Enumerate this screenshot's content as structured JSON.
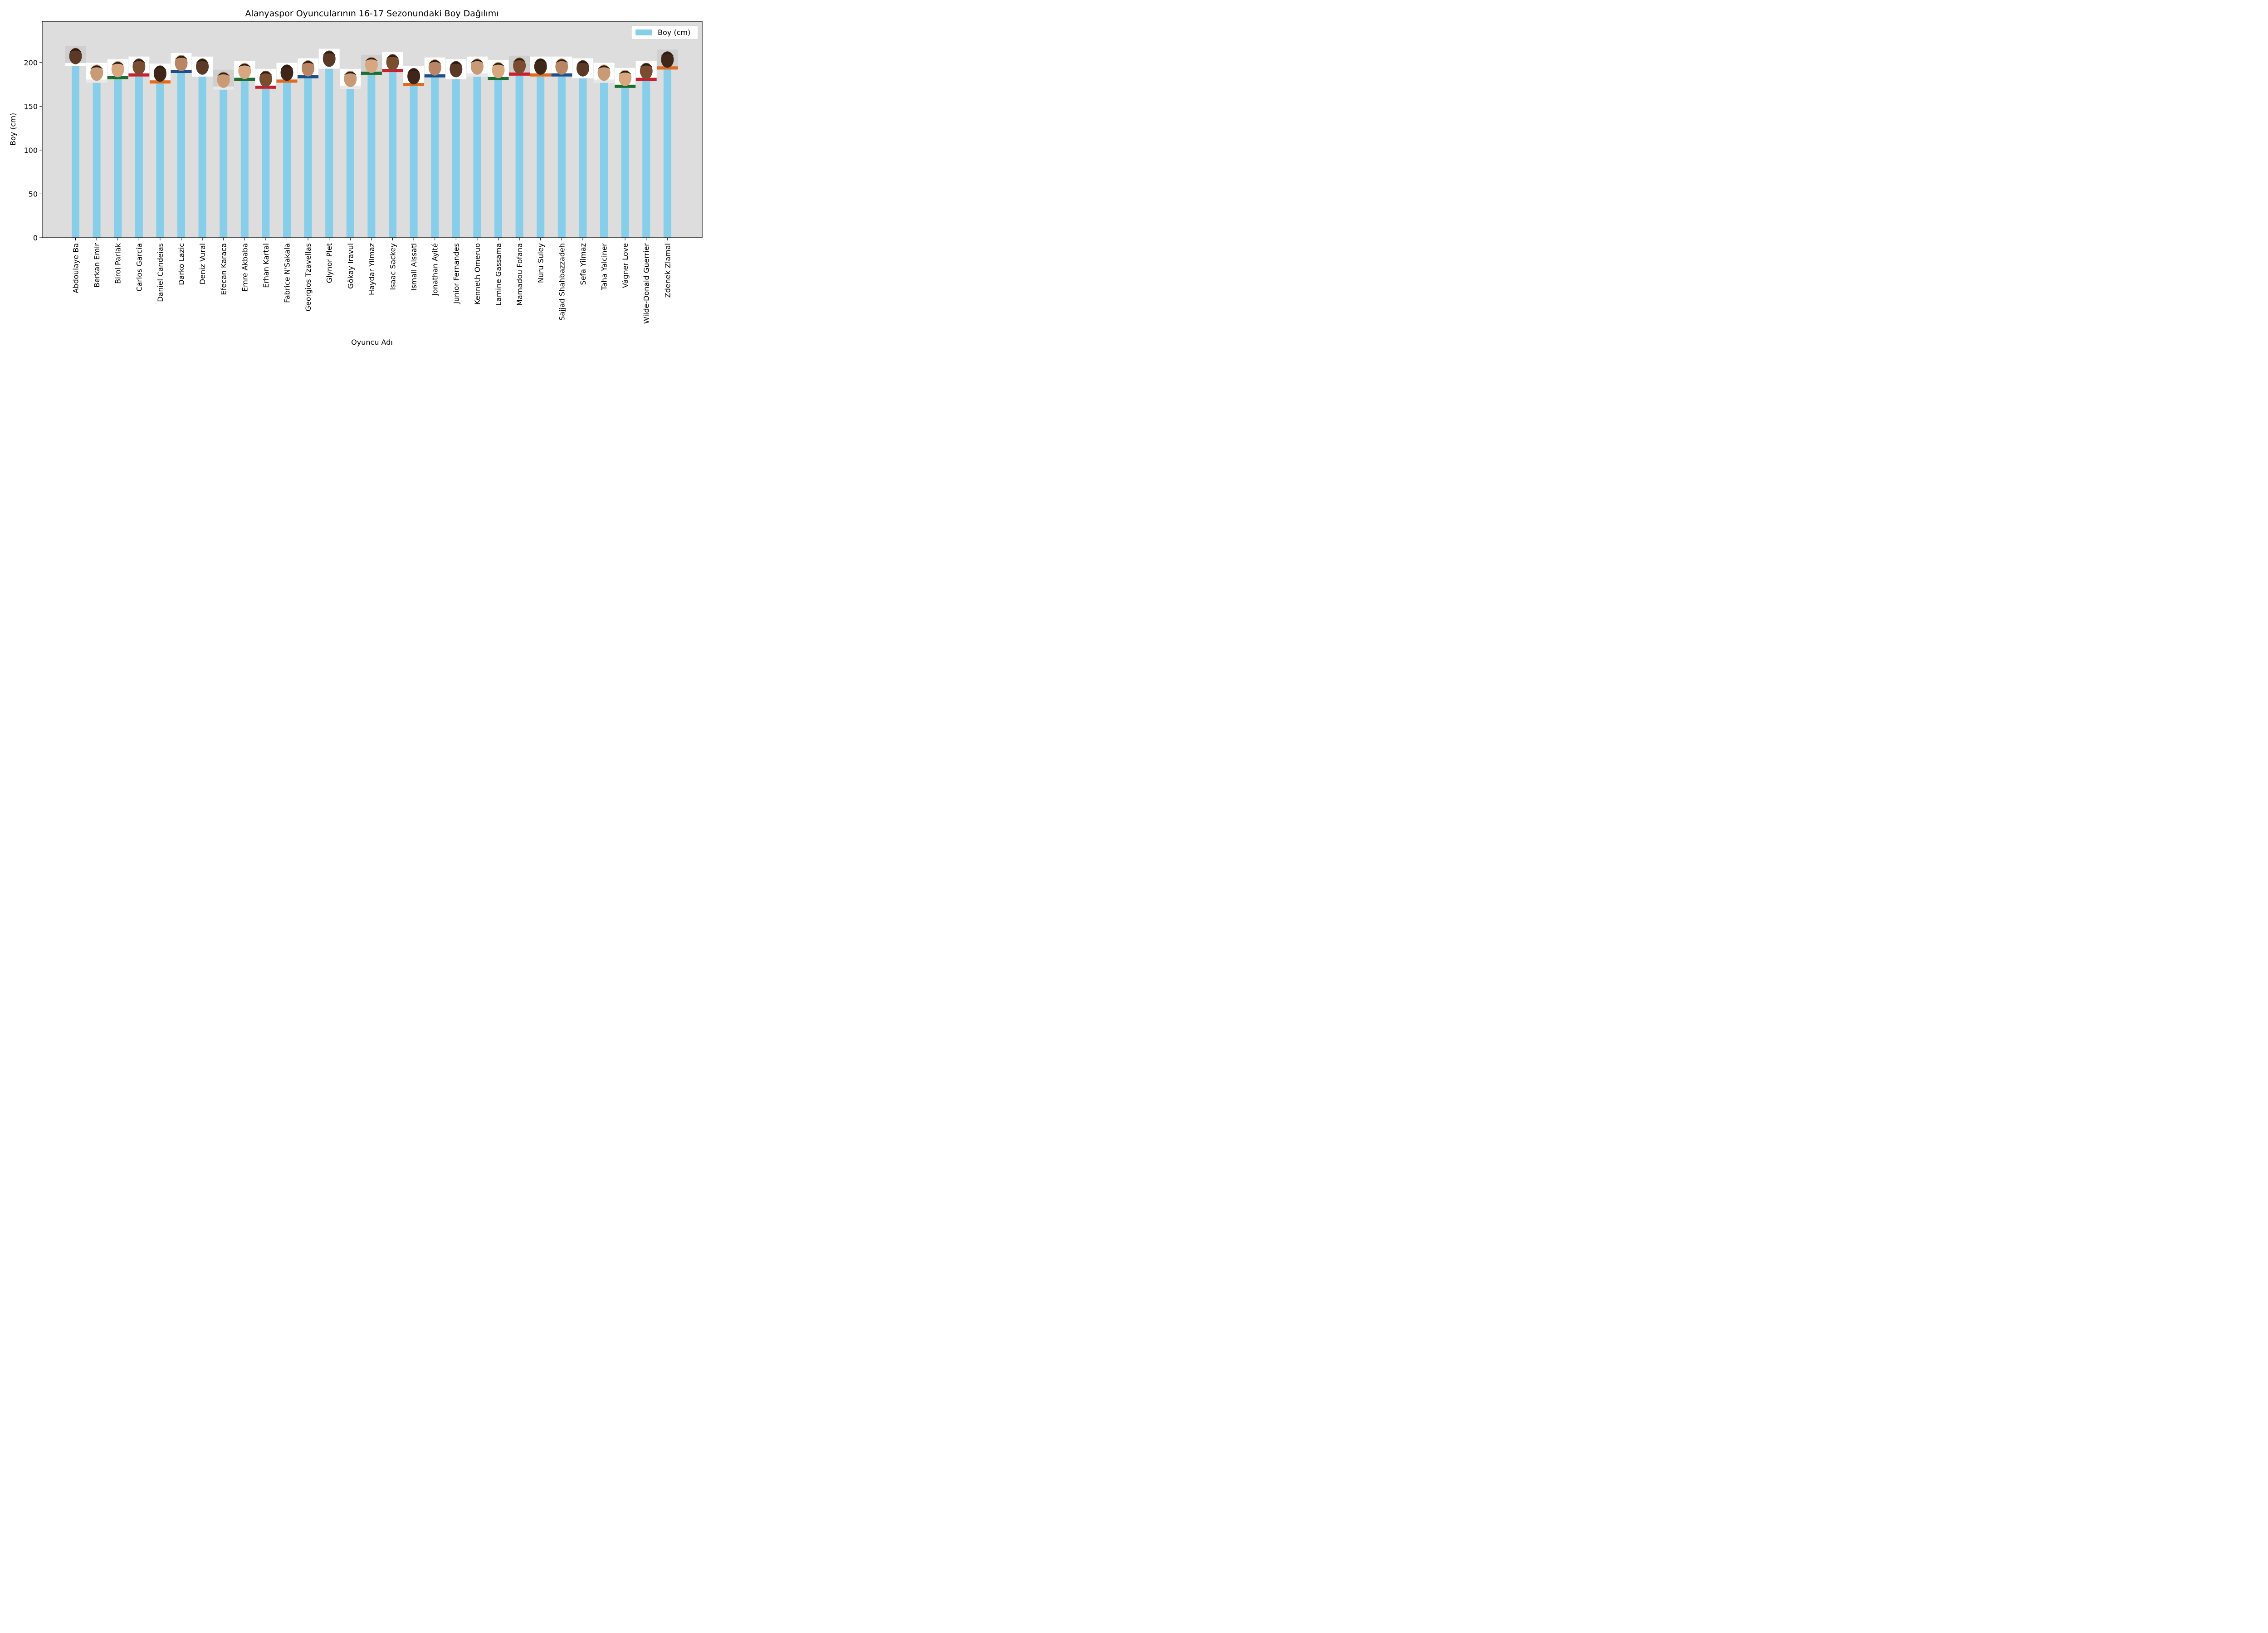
{
  "chart_data": {
    "type": "bar",
    "title": "Alanyaspor Oyuncularının 16-17 Sezonundaki Boy Dağılımı",
    "xlabel": "Oyuncu Adı",
    "ylabel": "Boy (cm)",
    "ylim": [
      0,
      247
    ],
    "yticks": [
      0,
      50,
      100,
      150,
      200
    ],
    "legend": {
      "label": "Boy (cm)",
      "position": "top-right"
    },
    "grid": false,
    "colors": {
      "bar": "#87CEEB",
      "plot_bg": "#DDDDDD"
    },
    "categories": [
      "Abdoulaye Ba",
      "Berkan Emir",
      "Birol Parlak",
      "Carlos García",
      "Daniel Candeias",
      "Darko Lazic",
      "Deniz Vural",
      "Efecan Karaca",
      "Emre Akbaba",
      "Erhan Kartal",
      "Fabrice N'Sakala",
      "Georgios Tzavellas",
      "Glynor Plet",
      "Gökay Iravul",
      "Haydar Yilmaz",
      "Isaac Sackey",
      "Ismail Aissati",
      "Jonathan Ayité",
      "Junior Fernandes",
      "Kenneth Omeruo",
      "Lamine Gassama",
      "Mamadou Fofana",
      "Nuru Suley",
      "Sajjad Shahbazzadeh",
      "Sefa Yilmaz",
      "Taha Yalciner",
      "Vágner Love",
      "Wilde-Donald Guerrier",
      "Zdenek Zlamal"
    ],
    "series": [
      {
        "name": "Boy (cm)",
        "values": [
          197,
          178,
          182,
          185,
          177,
          189,
          185,
          170,
          180,
          171,
          178,
          183,
          194,
          171,
          187,
          190,
          174,
          184,
          182,
          185,
          181,
          186,
          185,
          185,
          183,
          178,
          172,
          180,
          193
        ]
      }
    ]
  }
}
